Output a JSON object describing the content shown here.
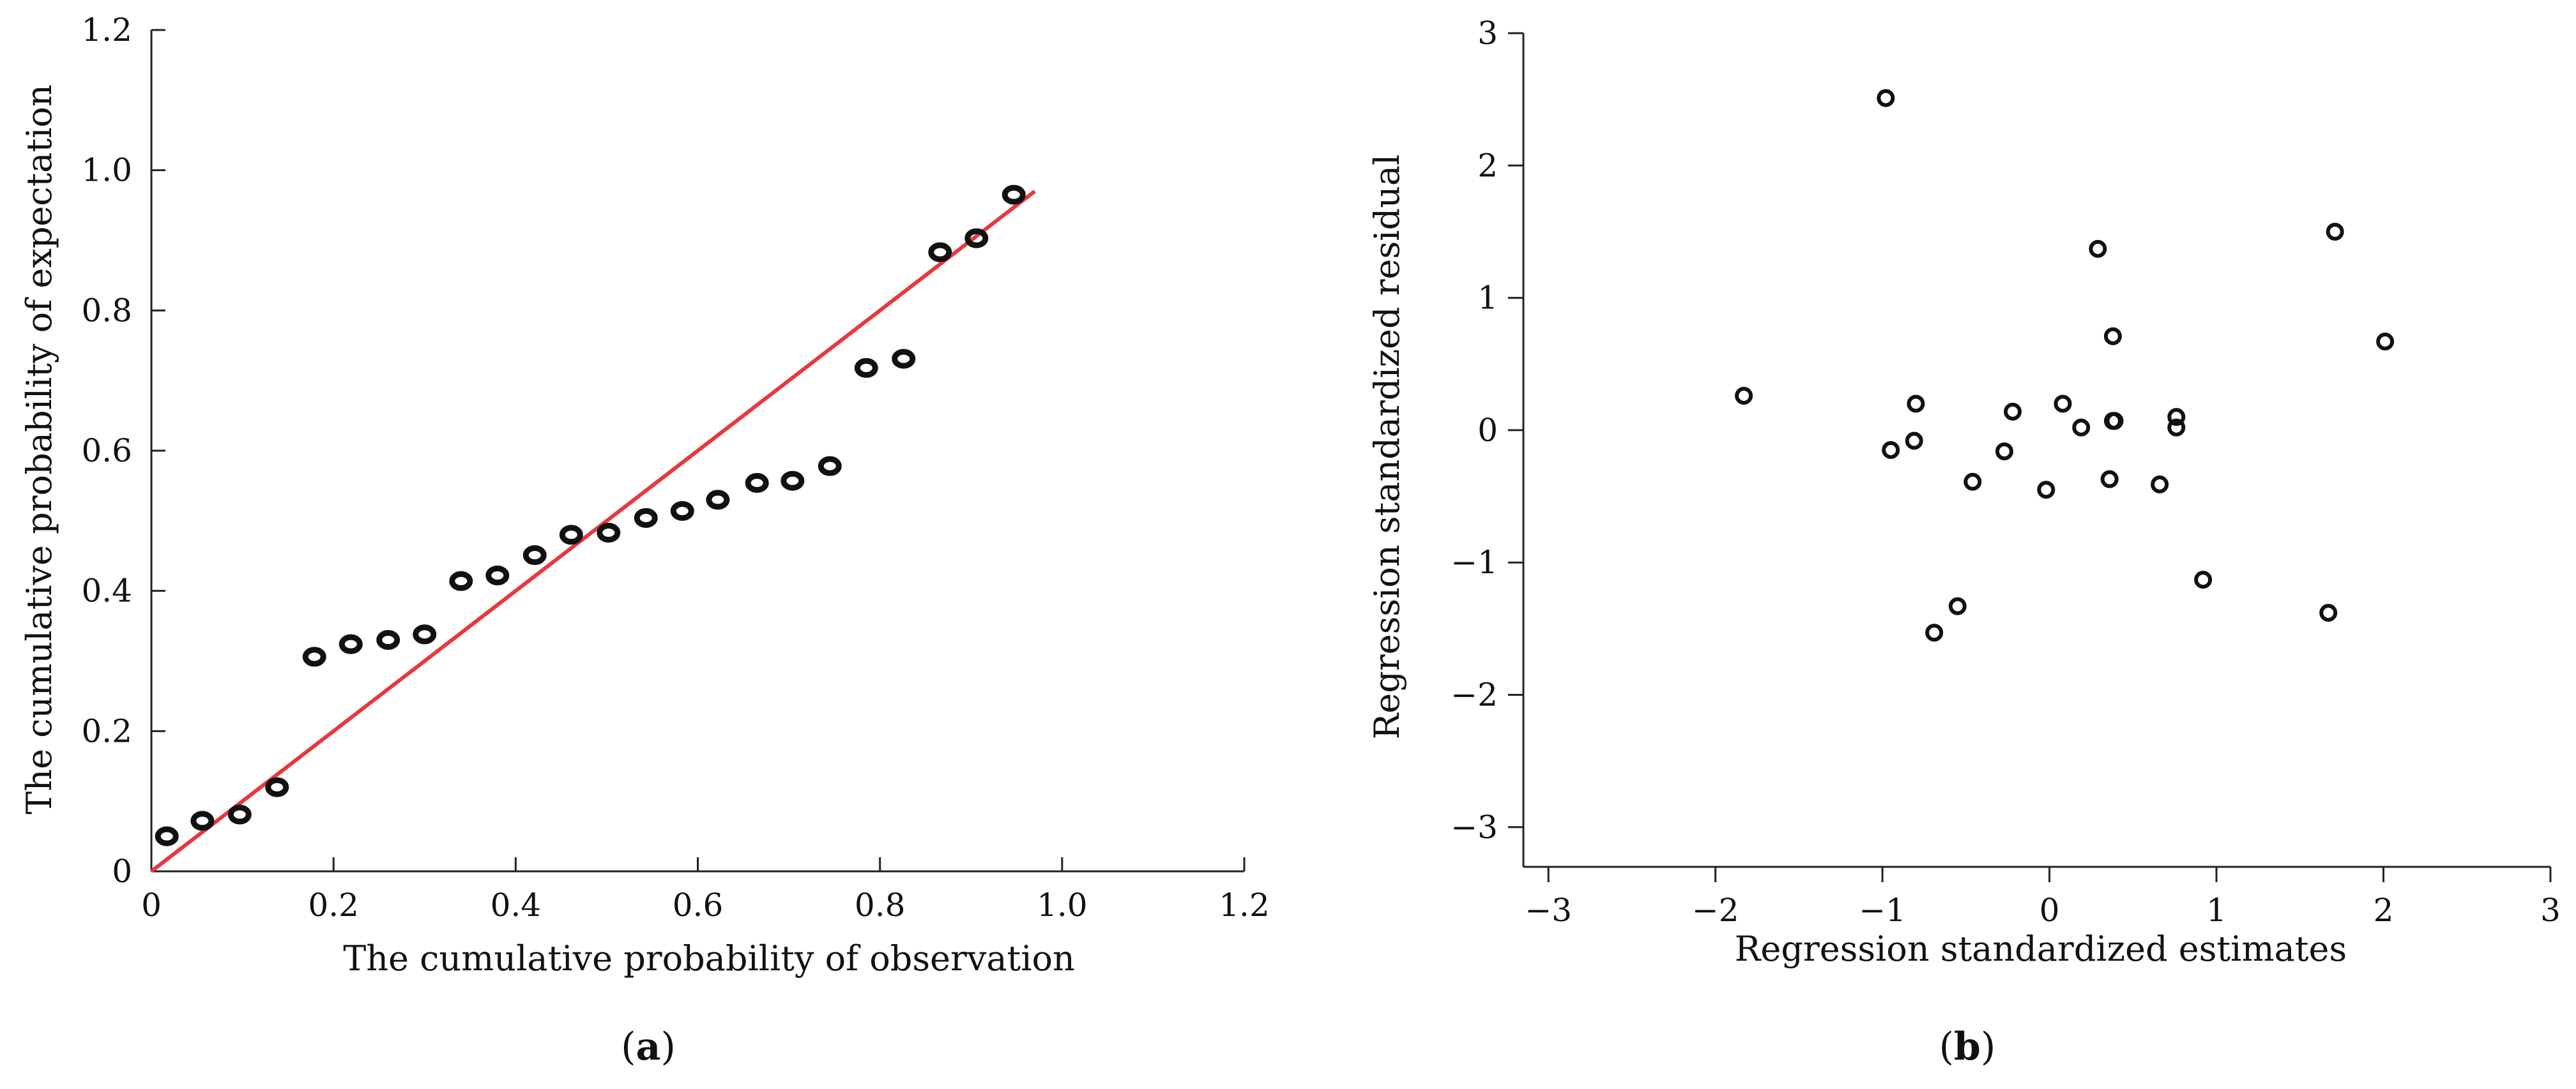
{
  "chart_data": [
    {
      "id": "a",
      "type": "scatter",
      "caption": "a",
      "xlabel": "The cumulative probability of observation",
      "ylabel": "The cumulative probability of expectation",
      "xlim": [
        0,
        1.2
      ],
      "ylim": [
        0,
        1.2
      ],
      "xticks": [
        "0",
        "0.2",
        "0.4",
        "0.6",
        "0.8",
        "1.0",
        "1.2"
      ],
      "yticks": [
        "0",
        "0.2",
        "0.4",
        "0.6",
        "0.8",
        "1.0",
        "1.2"
      ],
      "x": [
        0.017,
        0.056,
        0.097,
        0.138,
        0.179,
        0.219,
        0.26,
        0.3,
        0.34,
        0.38,
        0.421,
        0.461,
        0.502,
        0.543,
        0.583,
        0.622,
        0.665,
        0.704,
        0.745,
        0.785,
        0.826,
        0.866,
        0.906,
        0.947
      ],
      "y": [
        0.05,
        0.072,
        0.081,
        0.12,
        0.306,
        0.324,
        0.33,
        0.338,
        0.414,
        0.422,
        0.451,
        0.48,
        0.483,
        0.504,
        0.514,
        0.53,
        0.554,
        0.557,
        0.578,
        0.718,
        0.731,
        0.883,
        0.903,
        0.965
      ],
      "reference_line": {
        "x": [
          0,
          0.97
        ],
        "y": [
          0,
          0.97
        ],
        "color": "#e8383d"
      }
    },
    {
      "id": "b",
      "type": "scatter",
      "caption": "b",
      "xlabel": "Regression standardized estimates",
      "ylabel": "Regression standardized residual",
      "xlim": [
        -3.15,
        3.0
      ],
      "ylim": [
        -3.3,
        3.0
      ],
      "xticks": [
        "−3",
        "−2",
        "−1",
        "0",
        "1",
        "2",
        "3"
      ],
      "yticks": [
        "3",
        "2",
        "1",
        "0",
        "−1",
        "−2",
        "−3"
      ],
      "x": [
        -1.83,
        -0.98,
        -0.95,
        -0.81,
        -0.8,
        -0.69,
        -0.55,
        -0.46,
        -0.27,
        -0.22,
        -0.02,
        0.08,
        0.19,
        0.29,
        0.36,
        0.38,
        0.39,
        0.38,
        0.66,
        0.76,
        0.76,
        0.92,
        1.67,
        1.71,
        2.01
      ],
      "y": [
        0.26,
        2.51,
        -0.15,
        -0.08,
        0.2,
        -1.53,
        -1.33,
        -0.39,
        -0.16,
        0.14,
        -0.45,
        0.2,
        0.02,
        1.37,
        -0.37,
        0.71,
        0.07,
        0.07,
        -0.41,
        0.02,
        0.1,
        -1.13,
        -1.38,
        1.5,
        0.67
      ]
    }
  ]
}
